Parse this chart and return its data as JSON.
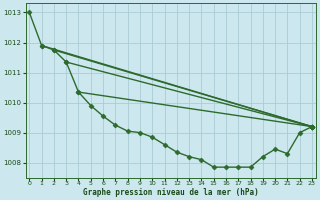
{
  "xlabel": "Graphe pression niveau de la mer (hPa)",
  "background_color": "#cce8ee",
  "grid_color": "#aaccd4",
  "line_color": "#2d6a2d",
  "xlim": [
    -0.3,
    23.3
  ],
  "ylim": [
    1007.5,
    1013.3
  ],
  "yticks": [
    1008,
    1009,
    1010,
    1011,
    1012,
    1013
  ],
  "xticks": [
    0,
    1,
    2,
    3,
    4,
    5,
    6,
    7,
    8,
    9,
    10,
    11,
    12,
    13,
    14,
    15,
    16,
    17,
    18,
    19,
    20,
    21,
    22,
    23
  ],
  "main_line": {
    "x": [
      0,
      1,
      2,
      3,
      4,
      5,
      6,
      7,
      8,
      9,
      10,
      11,
      12,
      13,
      14,
      15,
      16,
      17,
      18,
      19,
      20,
      21,
      22,
      23
    ],
    "y": [
      1013.0,
      1011.9,
      1011.75,
      1011.35,
      1010.35,
      1009.9,
      1009.55,
      1009.25,
      1009.05,
      1009.0,
      1008.85,
      1008.6,
      1008.35,
      1008.2,
      1008.1,
      1007.85,
      1007.85,
      1007.85,
      1007.85,
      1008.2,
      1008.45,
      1008.3,
      1009.0,
      1009.2
    ]
  },
  "fan_lines": [
    {
      "x": [
        1,
        23
      ],
      "y": [
        1011.9,
        1009.2
      ]
    },
    {
      "x": [
        2,
        23
      ],
      "y": [
        1011.75,
        1009.2
      ]
    },
    {
      "x": [
        3,
        23
      ],
      "y": [
        1011.35,
        1009.2
      ]
    },
    {
      "x": [
        4,
        23
      ],
      "y": [
        1010.35,
        1009.2
      ]
    }
  ],
  "markersize": 2.5,
  "linewidth": 1.0
}
